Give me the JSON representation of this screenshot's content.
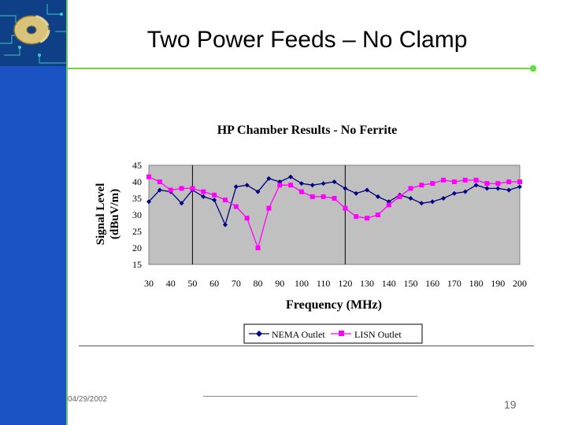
{
  "slide": {
    "title": "Two Power Feeds – No Clamp",
    "date": "04/29/2002",
    "page_number": "19"
  },
  "colors": {
    "sidebar": "#1a52c4",
    "accent_green": "#6fc36f",
    "plot_area": "#c0c0c0",
    "nema_series": "#000080",
    "lisn_series": "#ff00ff"
  },
  "chart_data": {
    "type": "line",
    "title": "HP Chamber Results - No Ferrite",
    "xlabel": "Frequency (MHz)",
    "ylabel_line1": "Signal Level",
    "ylabel_line2": "(dBuV/m)",
    "ylim": [
      15,
      45
    ],
    "yticks": [
      15,
      20,
      25,
      30,
      35,
      40,
      45
    ],
    "xticks": [
      30,
      40,
      50,
      60,
      70,
      80,
      90,
      100,
      110,
      120,
      130,
      140,
      150,
      160,
      170,
      180,
      190,
      200
    ],
    "vlines": [
      50,
      120
    ],
    "grid": false,
    "legend_position": "bottom",
    "series": [
      {
        "name": "NEMA Outlet",
        "color": "#000080",
        "marker": "diamond",
        "x": [
          30,
          35,
          40,
          45,
          50,
          55,
          60,
          65,
          70,
          75,
          80,
          85,
          90,
          95,
          100,
          105,
          110,
          115,
          120,
          125,
          130,
          135,
          140,
          145,
          150,
          155,
          160,
          165,
          170,
          175,
          180,
          185,
          190,
          195,
          200
        ],
        "y": [
          34,
          37.5,
          37,
          33.5,
          37.5,
          35.5,
          34.5,
          27,
          38.5,
          39,
          37,
          41,
          40,
          41.5,
          39.5,
          39,
          39.5,
          40,
          38,
          36.5,
          37.5,
          35.5,
          34,
          36,
          35,
          33.5,
          34,
          35,
          36.5,
          37,
          39,
          38,
          38,
          37.5,
          38.5
        ]
      },
      {
        "name": "LISN Outlet",
        "color": "#ff00ff",
        "marker": "square",
        "x": [
          30,
          35,
          40,
          45,
          50,
          55,
          60,
          65,
          70,
          75,
          80,
          85,
          90,
          95,
          100,
          105,
          110,
          115,
          120,
          125,
          130,
          135,
          140,
          145,
          150,
          155,
          160,
          165,
          170,
          175,
          180,
          185,
          190,
          195,
          200
        ],
        "y": [
          41.5,
          40,
          37.5,
          38,
          38,
          37,
          36,
          34.5,
          32.5,
          29,
          20,
          32,
          39,
          39,
          37,
          35.5,
          35.5,
          35,
          32,
          29.5,
          29,
          30,
          33,
          35.5,
          38,
          39,
          39.5,
          40.5,
          40,
          40.5,
          40.5,
          39.5,
          39.5,
          40,
          40
        ]
      }
    ]
  }
}
